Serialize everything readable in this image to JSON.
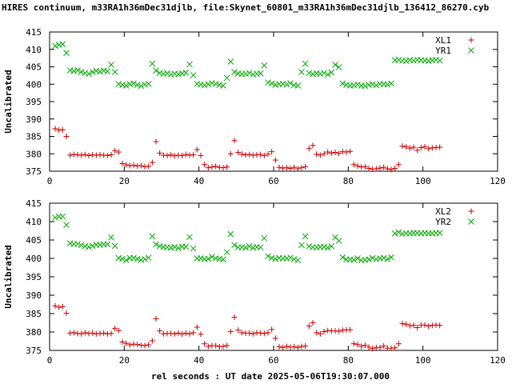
{
  "title": "HIRES continuum, m33RA1h36mDec31djlb, file:Skynet_60801_m33RA1h36mDec31djlb_136412_86270.cyb",
  "xlabel": "rel seconds : UT date 2025-05-06T19:30:07.000",
  "chart_data": [
    {
      "type": "scatter",
      "ylabel": "Uncalibrated",
      "xlim": [
        0,
        120
      ],
      "ylim": [
        375,
        415
      ],
      "xticks": [
        0,
        20,
        40,
        60,
        80,
        100,
        120
      ],
      "yticks": [
        375,
        380,
        385,
        390,
        395,
        400,
        405,
        410,
        415
      ],
      "legend": "top-right",
      "series": [
        {
          "name": "XL1",
          "color": "#cc0000",
          "marker": "plus",
          "x": [
            1.5,
            2.5,
            3.5,
            4.5,
            5.5,
            6.5,
            7.5,
            8.5,
            9.5,
            10.5,
            11.5,
            12.5,
            13.5,
            14.5,
            15.5,
            16.5,
            17.5,
            18.5,
            19.5,
            20.5,
            21.5,
            22.5,
            23.5,
            24.5,
            25.5,
            26.5,
            27.5,
            28.5,
            29.5,
            30.5,
            31.5,
            32.5,
            33.5,
            34.5,
            35.5,
            36.5,
            37.5,
            38.5,
            39.5,
            40.5,
            41.5,
            42.5,
            43.5,
            44.5,
            45.5,
            46.5,
            47.5,
            48.5,
            49.5,
            50.5,
            51.5,
            52.5,
            53.5,
            54.5,
            55.5,
            56.5,
            57.5,
            58.5,
            59.5,
            60.5,
            61.5,
            62.5,
            63.5,
            64.5,
            65.5,
            66.5,
            67.5,
            68.5,
            69.5,
            70.5,
            71.5,
            72.5,
            73.5,
            74.5,
            75.5,
            76.5,
            77.5,
            78.5,
            79.5,
            80.5,
            81.5,
            82.5,
            83.5,
            84.5,
            85.5,
            86.5,
            87.5,
            88.5,
            89.5,
            90.5,
            91.5,
            92.5,
            93.5,
            94.5,
            95.5,
            96.5,
            97.5,
            98.5,
            99.5,
            100.5,
            101.5,
            102.5,
            103.5,
            104.5
          ],
          "y": [
            387.2,
            386.8,
            386.9,
            385.0,
            379.6,
            379.8,
            379.7,
            379.6,
            379.8,
            379.5,
            379.7,
            379.6,
            379.7,
            379.6,
            379.5,
            379.7,
            380.9,
            380.5,
            377.2,
            376.8,
            376.6,
            376.7,
            376.5,
            376.6,
            376.3,
            376.4,
            377.5,
            383.5,
            380.2,
            379.6,
            379.5,
            379.7,
            379.4,
            379.6,
            379.5,
            379.8,
            379.6,
            379.7,
            381.2,
            379.5,
            376.9,
            376.0,
            376.2,
            376.4,
            376.1,
            376.0,
            376.2,
            380.0,
            383.8,
            380.4,
            379.9,
            379.7,
            379.8,
            379.6,
            379.7,
            379.8,
            379.5,
            379.9,
            380.6,
            378.2,
            376.1,
            375.9,
            376.0,
            375.8,
            376.1,
            375.7,
            376.0,
            376.3,
            381.5,
            382.4,
            379.9,
            379.6,
            380.0,
            380.5,
            380.2,
            380.4,
            380.1,
            380.6,
            380.5,
            380.7,
            376.9,
            376.5,
            376.2,
            376.3,
            375.8,
            375.6,
            375.7,
            375.9,
            376.1,
            375.7,
            375.5,
            375.8,
            376.9,
            382.2,
            382.0,
            381.6,
            381.9,
            381.0,
            381.8,
            382.0,
            381.5,
            381.7,
            381.8,
            381.9
          ]
        },
        {
          "name": "YR1",
          "color": "#00aa00",
          "marker": "cross",
          "x": [
            1.5,
            2.5,
            3.5,
            4.5,
            5.5,
            6.5,
            7.5,
            8.5,
            9.5,
            10.5,
            11.5,
            12.5,
            13.5,
            14.5,
            15.5,
            16.5,
            17.5,
            18.5,
            19.5,
            20.5,
            21.5,
            22.5,
            23.5,
            24.5,
            25.5,
            26.5,
            27.5,
            28.5,
            29.5,
            30.5,
            31.5,
            32.5,
            33.5,
            34.5,
            35.5,
            36.5,
            37.5,
            38.5,
            39.5,
            40.5,
            41.5,
            42.5,
            43.5,
            44.5,
            45.5,
            46.5,
            47.5,
            48.5,
            49.5,
            50.5,
            51.5,
            52.5,
            53.5,
            54.5,
            55.5,
            56.5,
            57.5,
            58.5,
            59.5,
            60.5,
            61.5,
            62.5,
            63.5,
            64.5,
            65.5,
            66.5,
            67.5,
            68.5,
            69.5,
            70.5,
            71.5,
            72.5,
            73.5,
            74.5,
            75.5,
            76.5,
            77.5,
            78.5,
            79.5,
            80.5,
            81.5,
            82.5,
            83.5,
            84.5,
            85.5,
            86.5,
            87.5,
            88.5,
            89.5,
            90.5,
            91.5,
            92.5,
            93.5,
            94.5,
            95.5,
            96.5,
            97.5,
            98.5,
            99.5,
            100.5,
            101.5,
            102.5,
            103.5,
            104.5
          ],
          "y": [
            411.0,
            411.3,
            411.5,
            409.0,
            404.0,
            403.8,
            404.0,
            403.5,
            403.2,
            403.0,
            403.5,
            403.8,
            403.6,
            403.9,
            403.7,
            405.6,
            403.5,
            400.0,
            399.8,
            399.6,
            400.0,
            400.2,
            399.8,
            399.5,
            399.9,
            400.1,
            405.9,
            403.9,
            403.2,
            403.0,
            403.1,
            402.8,
            403.0,
            402.9,
            403.1,
            403.3,
            405.7,
            402.6,
            400.1,
            399.9,
            399.7,
            400.0,
            400.3,
            400.1,
            399.8,
            399.6,
            401.8,
            406.5,
            403.5,
            403.1,
            402.9,
            403.0,
            403.2,
            402.8,
            403.0,
            403.1,
            405.4,
            400.5,
            400.2,
            399.8,
            400.0,
            400.1,
            399.9,
            400.3,
            399.7,
            399.6,
            403.5,
            405.9,
            403.2,
            402.9,
            403.1,
            403.0,
            403.2,
            402.8,
            403.4,
            405.6,
            404.9,
            400.2,
            399.8,
            399.6,
            399.7,
            399.9,
            399.6,
            399.5,
            399.8,
            400.0,
            399.7,
            400.1,
            400.0,
            399.9,
            400.2,
            406.9,
            407.0,
            406.8,
            406.7,
            406.9,
            406.8,
            407.0,
            406.9,
            406.8,
            406.7,
            406.9,
            407.0,
            406.8
          ]
        }
      ]
    },
    {
      "type": "scatter",
      "ylabel": "Uncalibrated",
      "xlim": [
        0,
        120
      ],
      "ylim": [
        375,
        415
      ],
      "xticks": [
        0,
        20,
        40,
        60,
        80,
        100,
        120
      ],
      "yticks": [
        375,
        380,
        385,
        390,
        395,
        400,
        405,
        410,
        415
      ],
      "legend": "top-right",
      "series": [
        {
          "name": "XL2",
          "color": "#cc0000",
          "marker": "plus",
          "x": [
            1.5,
            2.5,
            3.5,
            4.5,
            5.5,
            6.5,
            7.5,
            8.5,
            9.5,
            10.5,
            11.5,
            12.5,
            13.5,
            14.5,
            15.5,
            16.5,
            17.5,
            18.5,
            19.5,
            20.5,
            21.5,
            22.5,
            23.5,
            24.5,
            25.5,
            26.5,
            27.5,
            28.5,
            29.5,
            30.5,
            31.5,
            32.5,
            33.5,
            34.5,
            35.5,
            36.5,
            37.5,
            38.5,
            39.5,
            40.5,
            41.5,
            42.5,
            43.5,
            44.5,
            45.5,
            46.5,
            47.5,
            48.5,
            49.5,
            50.5,
            51.5,
            52.5,
            53.5,
            54.5,
            55.5,
            56.5,
            57.5,
            58.5,
            59.5,
            60.5,
            61.5,
            62.5,
            63.5,
            64.5,
            65.5,
            66.5,
            67.5,
            68.5,
            69.5,
            70.5,
            71.5,
            72.5,
            73.5,
            74.5,
            75.5,
            76.5,
            77.5,
            78.5,
            79.5,
            80.5,
            81.5,
            82.5,
            83.5,
            84.5,
            85.5,
            86.5,
            87.5,
            88.5,
            89.5,
            90.5,
            91.5,
            92.5,
            93.5,
            94.5,
            95.5,
            96.5,
            97.5,
            98.5,
            99.5,
            100.5,
            101.5,
            102.5,
            103.5,
            104.5
          ],
          "y": [
            387.1,
            386.7,
            386.9,
            385.1,
            379.7,
            379.8,
            379.6,
            379.5,
            379.8,
            379.6,
            379.7,
            379.5,
            379.6,
            379.7,
            379.5,
            379.6,
            381.0,
            380.4,
            377.3,
            376.9,
            376.5,
            376.7,
            376.6,
            376.4,
            376.3,
            376.5,
            377.6,
            383.6,
            380.3,
            379.5,
            379.6,
            379.6,
            379.5,
            379.7,
            379.4,
            379.7,
            379.5,
            379.8,
            381.3,
            379.4,
            376.8,
            376.1,
            376.3,
            376.3,
            376.0,
            376.1,
            376.3,
            380.1,
            384.0,
            380.5,
            379.8,
            379.7,
            379.7,
            379.5,
            379.8,
            379.7,
            379.6,
            379.8,
            380.7,
            378.3,
            376.0,
            375.8,
            376.1,
            375.9,
            376.0,
            375.8,
            376.1,
            376.2,
            381.6,
            382.5,
            379.8,
            379.5,
            380.1,
            380.4,
            380.3,
            380.3,
            380.2,
            380.5,
            380.6,
            380.6,
            376.8,
            376.6,
            376.1,
            376.4,
            375.9,
            375.5,
            375.8,
            375.8,
            376.2,
            375.6,
            375.6,
            375.7,
            376.8,
            382.3,
            382.1,
            381.7,
            381.8,
            381.2,
            381.9,
            381.9,
            381.6,
            381.8,
            381.9,
            381.8
          ]
        },
        {
          "name": "YR2",
          "color": "#00aa00",
          "marker": "cross",
          "x": [
            1.5,
            2.5,
            3.5,
            4.5,
            5.5,
            6.5,
            7.5,
            8.5,
            9.5,
            10.5,
            11.5,
            12.5,
            13.5,
            14.5,
            15.5,
            16.5,
            17.5,
            18.5,
            19.5,
            20.5,
            21.5,
            22.5,
            23.5,
            24.5,
            25.5,
            26.5,
            27.5,
            28.5,
            29.5,
            30.5,
            31.5,
            32.5,
            33.5,
            34.5,
            35.5,
            36.5,
            37.5,
            38.5,
            39.5,
            40.5,
            41.5,
            42.5,
            43.5,
            44.5,
            45.5,
            46.5,
            47.5,
            48.5,
            49.5,
            50.5,
            51.5,
            52.5,
            53.5,
            54.5,
            55.5,
            56.5,
            57.5,
            58.5,
            59.5,
            60.5,
            61.5,
            62.5,
            63.5,
            64.5,
            65.5,
            66.5,
            67.5,
            68.5,
            69.5,
            70.5,
            71.5,
            72.5,
            73.5,
            74.5,
            75.5,
            76.5,
            77.5,
            78.5,
            79.5,
            80.5,
            81.5,
            82.5,
            83.5,
            84.5,
            85.5,
            86.5,
            87.5,
            88.5,
            89.5,
            90.5,
            91.5,
            92.5,
            93.5,
            94.5,
            95.5,
            96.5,
            97.5,
            98.5,
            99.5,
            100.5,
            101.5,
            102.5,
            103.5,
            104.5
          ],
          "y": [
            411.1,
            411.4,
            411.4,
            409.1,
            404.1,
            403.9,
            403.9,
            403.6,
            403.3,
            403.1,
            403.4,
            403.7,
            403.7,
            403.8,
            403.8,
            405.7,
            403.4,
            400.1,
            399.9,
            399.5,
            400.1,
            400.1,
            399.9,
            399.6,
            399.8,
            400.2,
            406.0,
            403.8,
            403.3,
            403.1,
            403.0,
            402.9,
            403.1,
            402.8,
            403.2,
            403.2,
            405.8,
            402.7,
            400.0,
            400.0,
            399.8,
            399.9,
            400.4,
            400.0,
            399.9,
            399.7,
            401.7,
            406.6,
            403.6,
            403.0,
            403.0,
            402.9,
            403.3,
            402.9,
            403.1,
            403.0,
            405.5,
            400.6,
            400.1,
            399.9,
            400.1,
            400.0,
            400.0,
            400.2,
            399.8,
            399.5,
            403.6,
            406.0,
            403.3,
            403.0,
            403.0,
            403.1,
            403.1,
            402.9,
            403.3,
            405.7,
            404.8,
            400.3,
            399.7,
            399.7,
            399.6,
            400.0,
            399.5,
            399.6,
            399.7,
            400.1,
            399.8,
            400.0,
            400.1,
            399.8,
            400.3,
            406.8,
            407.1,
            406.7,
            406.8,
            406.8,
            406.9,
            406.9,
            406.8,
            406.9,
            406.8,
            406.8,
            406.9,
            406.9
          ]
        }
      ]
    }
  ]
}
